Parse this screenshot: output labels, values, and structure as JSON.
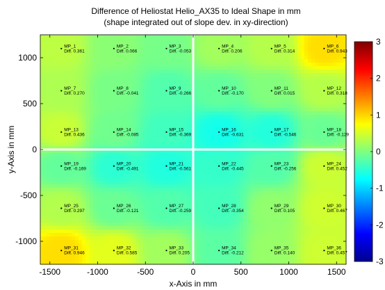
{
  "chart_data": {
    "type": "heatmap",
    "title": "Difference of Heliostat Helio_AX35 to Ideal Shape in mm",
    "subtitle": "(shape integrated out of slope dev. in xy-direction)",
    "xlabel": "x-Axis in mm",
    "ylabel": "y-Axis in mm",
    "xlim": [
      -1600,
      1600
    ],
    "ylim": [
      -1250,
      1250
    ],
    "xticks": [
      -1500,
      -1000,
      -500,
      0,
      500,
      1000,
      1500
    ],
    "yticks": [
      1000,
      500,
      0,
      -500,
      -1000
    ],
    "colorbar": {
      "range": [
        -3,
        3
      ],
      "ticks": [
        3,
        2,
        1,
        0,
        -1,
        -2,
        -3
      ],
      "colormap": "jet"
    },
    "diff_prefix": "Diff.",
    "points": [
      {
        "label": "MP_1",
        "x": -1380,
        "y": 1100,
        "diff": "0.361"
      },
      {
        "label": "MP_2",
        "x": -830,
        "y": 1100,
        "diff": "0.066"
      },
      {
        "label": "MP_3",
        "x": -280,
        "y": 1100,
        "diff": "-0.053"
      },
      {
        "label": "MP_4",
        "x": 270,
        "y": 1100,
        "diff": "0.206"
      },
      {
        "label": "MP_5",
        "x": 820,
        "y": 1100,
        "diff": "0.314"
      },
      {
        "label": "MP_6",
        "x": 1370,
        "y": 1100,
        "diff": "0.943"
      },
      {
        "label": "MP_7",
        "x": -1380,
        "y": 640,
        "diff": "0.270"
      },
      {
        "label": "MP_8",
        "x": -830,
        "y": 640,
        "diff": "-0.041"
      },
      {
        "label": "MP_9",
        "x": -280,
        "y": 640,
        "diff": "-0.266"
      },
      {
        "label": "MP_10",
        "x": 270,
        "y": 640,
        "diff": "-0.170"
      },
      {
        "label": "MP_11",
        "x": 820,
        "y": 640,
        "diff": "0.015"
      },
      {
        "label": "MP_12",
        "x": 1370,
        "y": 640,
        "diff": "0.318"
      },
      {
        "label": "MP_13",
        "x": -1380,
        "y": 190,
        "diff": "0.436"
      },
      {
        "label": "MP_14",
        "x": -830,
        "y": 190,
        "diff": "-0.085"
      },
      {
        "label": "MP_15",
        "x": -280,
        "y": 190,
        "diff": "-0.369"
      },
      {
        "label": "MP_16",
        "x": 270,
        "y": 190,
        "diff": "-0.631"
      },
      {
        "label": "MP_17",
        "x": 820,
        "y": 190,
        "diff": "-0.546"
      },
      {
        "label": "MP_18",
        "x": 1370,
        "y": 190,
        "diff": "-0.129"
      },
      {
        "label": "MP_19",
        "x": -1380,
        "y": -180,
        "diff": "-0.169"
      },
      {
        "label": "MP_20",
        "x": -830,
        "y": -180,
        "diff": "-0.491"
      },
      {
        "label": "MP_21",
        "x": -280,
        "y": -180,
        "diff": "-0.561"
      },
      {
        "label": "MP_22",
        "x": 270,
        "y": -180,
        "diff": "-0.445"
      },
      {
        "label": "MP_23",
        "x": 820,
        "y": -180,
        "diff": "-0.256"
      },
      {
        "label": "MP_24",
        "x": 1370,
        "y": -180,
        "diff": "0.452"
      },
      {
        "label": "MP_25",
        "x": -1380,
        "y": -640,
        "diff": "0.297"
      },
      {
        "label": "MP_26",
        "x": -830,
        "y": -640,
        "diff": "-0.121"
      },
      {
        "label": "MP_27",
        "x": -280,
        "y": -640,
        "diff": "-0.259"
      },
      {
        "label": "MP_28",
        "x": 270,
        "y": -640,
        "diff": "-0.354"
      },
      {
        "label": "MP_29",
        "x": 820,
        "y": -640,
        "diff": "0.105"
      },
      {
        "label": "MP_30",
        "x": 1370,
        "y": -640,
        "diff": "0.467"
      },
      {
        "label": "MP_31",
        "x": -1380,
        "y": -1100,
        "diff": "0.946"
      },
      {
        "label": "MP_32",
        "x": -830,
        "y": -1100,
        "diff": "0.585"
      },
      {
        "label": "MP_33",
        "x": -280,
        "y": -1100,
        "diff": "0.205"
      },
      {
        "label": "MP_34",
        "x": 270,
        "y": -1100,
        "diff": "-0.212"
      },
      {
        "label": "MP_35",
        "x": 820,
        "y": -1100,
        "diff": "0.140"
      },
      {
        "label": "MP_36",
        "x": 1370,
        "y": -1100,
        "diff": "0.457"
      }
    ]
  }
}
